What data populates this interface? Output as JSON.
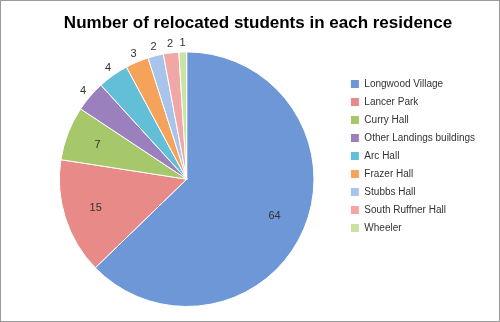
{
  "chart_data": {
    "type": "pie",
    "title": "Number of relocated students in each residence",
    "categories": [
      "Longwood Village",
      "Lancer Park",
      "Curry Hall",
      "Other Landings buildings",
      "Arc Hall",
      "Frazer Hall",
      "Stubbs Hall",
      "South Ruffner Hall",
      "Wheeler"
    ],
    "values": [
      64,
      15,
      7,
      4,
      4,
      3,
      2,
      2,
      1
    ],
    "colors": [
      "#6d97d6",
      "#e78a88",
      "#a6c76a",
      "#9a80bd",
      "#63bfd8",
      "#f5a25a",
      "#a9c4eb",
      "#f2a7a7",
      "#c9e3a0"
    ],
    "legend": "right",
    "data_labels": true
  }
}
